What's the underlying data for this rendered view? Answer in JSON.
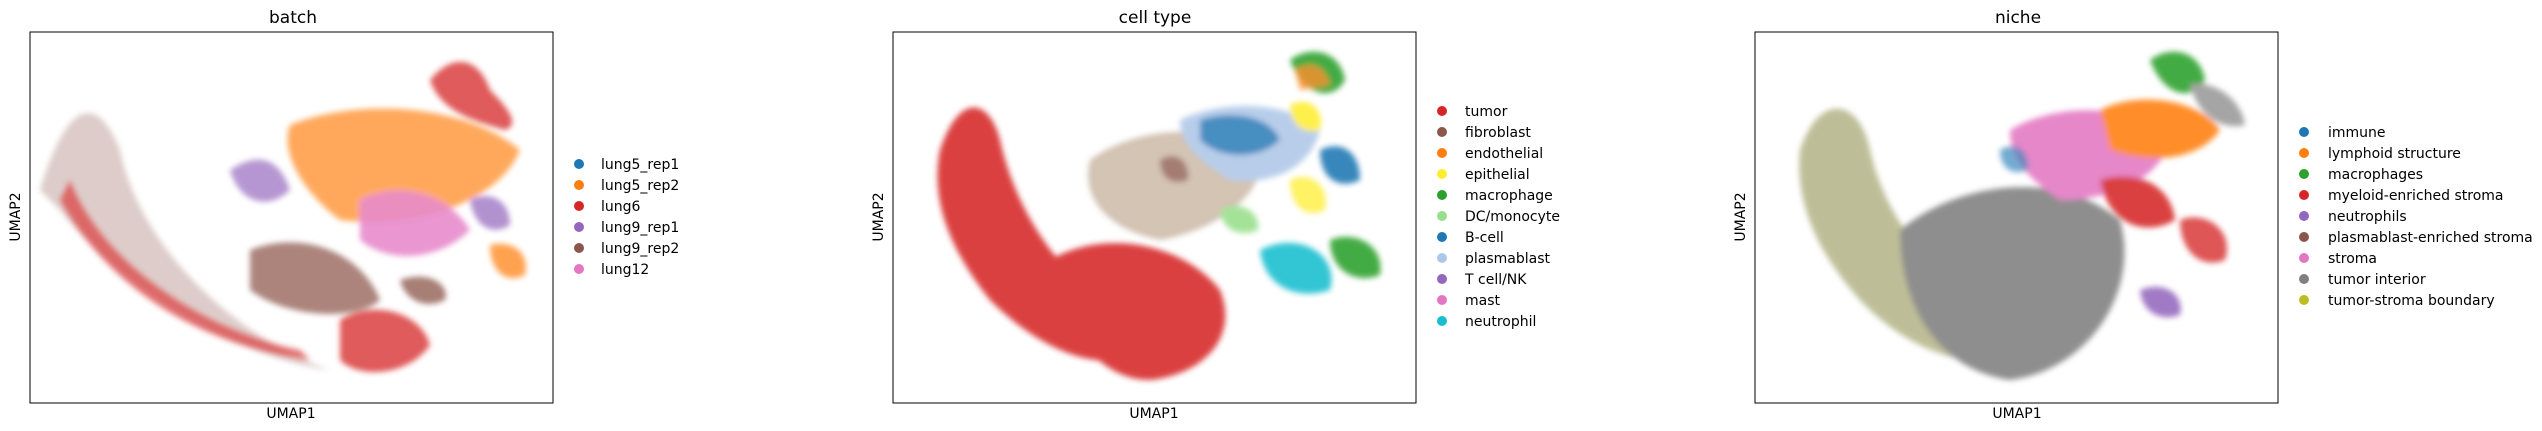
{
  "chart_data": [
    {
      "type": "scatter",
      "title": "batch",
      "xlabel": "UMAP1",
      "ylabel": "UMAP2",
      "grid": false,
      "legend": "right",
      "series": [
        {
          "name": "lung5_rep1",
          "color": "#1f77b4"
        },
        {
          "name": "lung5_rep2",
          "color": "#ff7f0e"
        },
        {
          "name": "lung6",
          "color": "#d62728"
        },
        {
          "name": "lung9_rep1",
          "color": "#9467bd"
        },
        {
          "name": "lung9_rep2",
          "color": "#8c564b"
        },
        {
          "name": "lung12",
          "color": "#e377c2"
        }
      ]
    },
    {
      "type": "scatter",
      "title": "cell type",
      "xlabel": "UMAP1",
      "ylabel": "UMAP2",
      "grid": false,
      "legend": "right",
      "series": [
        {
          "name": "tumor",
          "color": "#d62728"
        },
        {
          "name": "fibroblast",
          "color": "#8c564b"
        },
        {
          "name": "endothelial",
          "color": "#ff7f0e"
        },
        {
          "name": "epithelial",
          "color": "#ffed30"
        },
        {
          "name": "macrophage",
          "color": "#2ca02c"
        },
        {
          "name": "DC/monocyte",
          "color": "#98df8a"
        },
        {
          "name": "B-cell",
          "color": "#1f77b4"
        },
        {
          "name": "plasmablast",
          "color": "#aec7e8"
        },
        {
          "name": "T cell/NK",
          "color": "#9467bd"
        },
        {
          "name": "mast",
          "color": "#e377c2"
        },
        {
          "name": "neutrophil",
          "color": "#17becf"
        }
      ]
    },
    {
      "type": "scatter",
      "title": "niche",
      "xlabel": "UMAP1",
      "ylabel": "UMAP2",
      "grid": false,
      "legend": "right",
      "series": [
        {
          "name": "immune",
          "color": "#1f77b4"
        },
        {
          "name": "lymphoid structure",
          "color": "#ff7f0e"
        },
        {
          "name": "macrophages",
          "color": "#2ca02c"
        },
        {
          "name": "myeloid-enriched stroma",
          "color": "#d62728"
        },
        {
          "name": "neutrophils",
          "color": "#9467bd"
        },
        {
          "name": "plasmablast-enriched stroma",
          "color": "#8c564b"
        },
        {
          "name": "stroma",
          "color": "#e377c2"
        },
        {
          "name": "tumor interior",
          "color": "#7f7f7f"
        },
        {
          "name": "tumor-stroma boundary",
          "color": "#bcbd22"
        }
      ]
    }
  ]
}
